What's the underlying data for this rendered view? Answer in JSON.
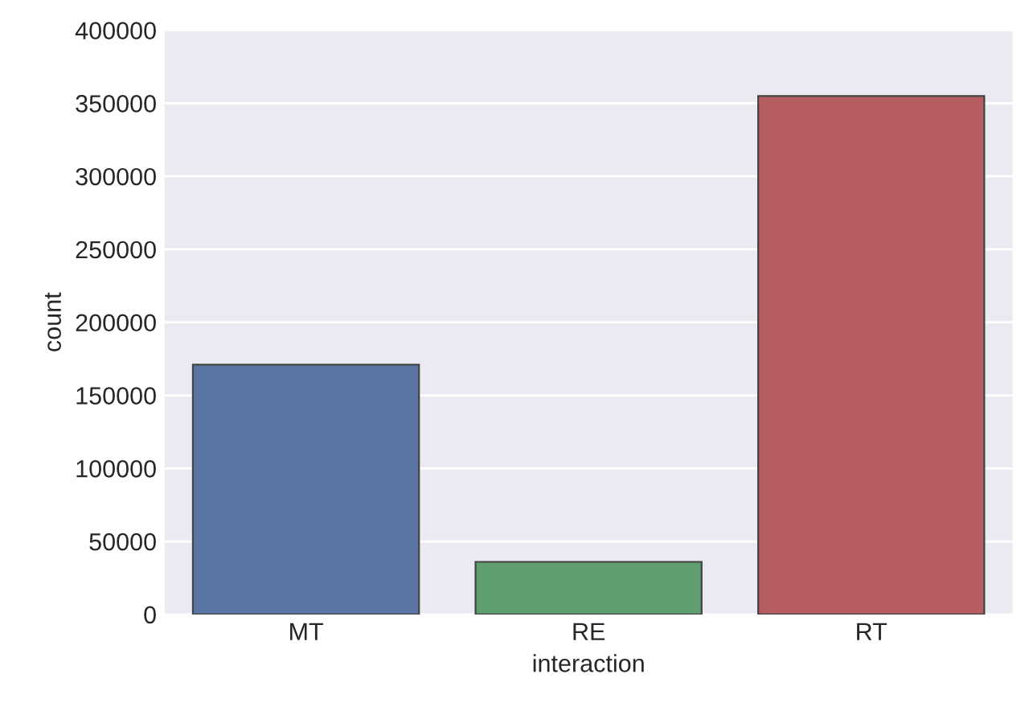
{
  "chart_data": {
    "type": "bar",
    "xlabel": "interaction",
    "ylabel": "count",
    "categories": [
      "MT",
      "RE",
      "RT"
    ],
    "values": [
      171000,
      36000,
      355000
    ],
    "colors": [
      "#5875a4",
      "#5f9e6e",
      "#b55d60"
    ],
    "ylim": [
      0,
      400000
    ],
    "yticks": [
      0,
      50000,
      100000,
      150000,
      200000,
      250000,
      300000,
      350000,
      400000
    ],
    "grid": "y"
  }
}
